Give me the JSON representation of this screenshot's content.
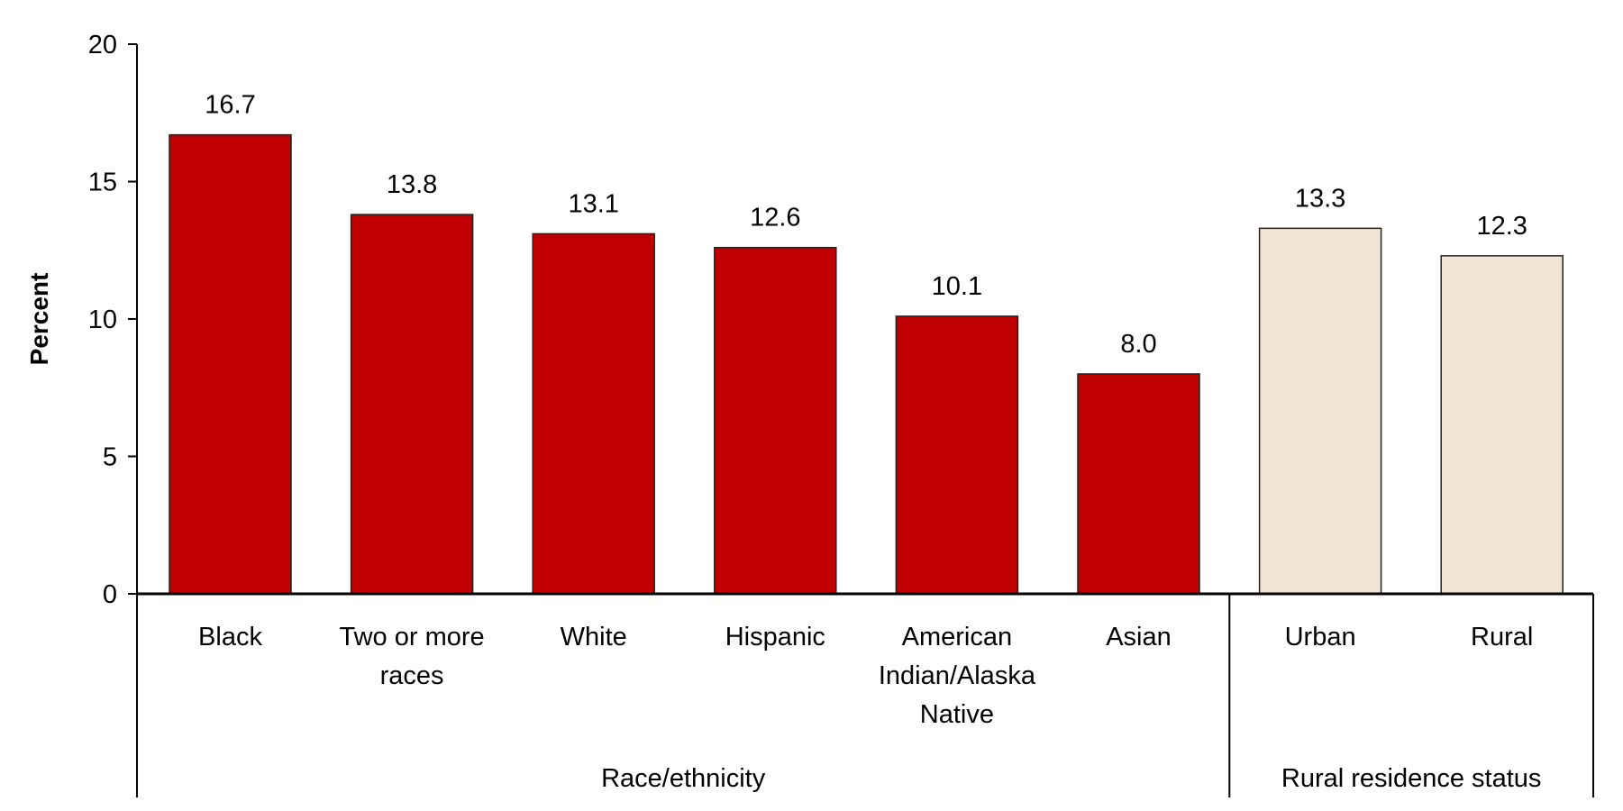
{
  "chart_data": {
    "type": "bar",
    "title": "",
    "xlabel": "",
    "ylabel": "Percent",
    "ylim": [
      0,
      20
    ],
    "yticks": [
      0,
      5,
      10,
      15,
      20
    ],
    "grid": false,
    "categories": [
      "Black",
      "Two or more races",
      "White",
      "Hispanic",
      "American Indian/Alaska Native",
      "Asian",
      "Urban",
      "Rural"
    ],
    "category_lines": [
      [
        "Black"
      ],
      [
        "Two or more",
        "races"
      ],
      [
        "White"
      ],
      [
        "Hispanic"
      ],
      [
        "American",
        "Indian/Alaska",
        "Native"
      ],
      [
        "Asian"
      ],
      [
        "Urban"
      ],
      [
        "Rural"
      ]
    ],
    "values": [
      16.7,
      13.8,
      13.1,
      12.6,
      10.1,
      8.0,
      13.3,
      12.3
    ],
    "data_labels": [
      "16.7",
      "13.8",
      "13.1",
      "12.6",
      "10.1",
      "8.0",
      "13.3",
      "12.3"
    ],
    "groups": [
      {
        "label": "Race/ethnicity",
        "count": 6,
        "color": "#c00000"
      },
      {
        "label": "Rural residence status",
        "count": 2,
        "color": "#f0e4d4"
      }
    ]
  }
}
